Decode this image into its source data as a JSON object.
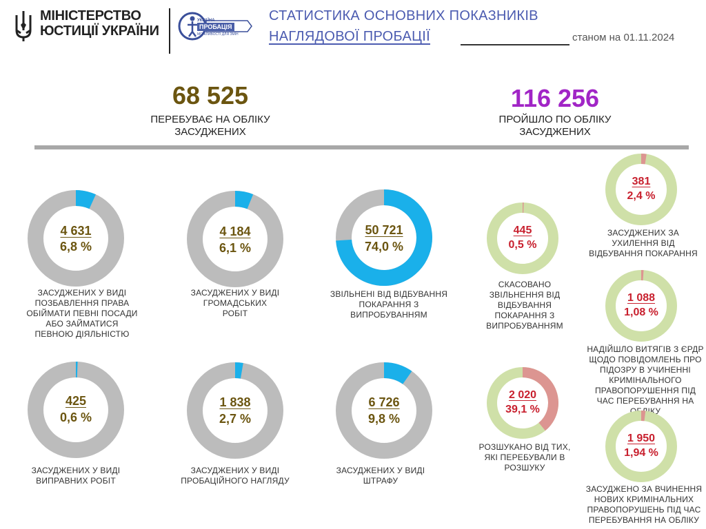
{
  "header": {
    "ministry_line1": "МІНІСТЕРСТВО",
    "ministry_line2": "ЮСТИЦІЇ УКРАЇНИ",
    "logo_line1": "УКРАЇНА",
    "logo_line2": "ПРОБАЦІЯ",
    "logo_line3": "МОЖЛИВОСТІ ДЛЯ ЗМІН",
    "title_line1": "СТАТИСТИКА ОСНОВНИХ ПОКАЗНИКІВ",
    "title_line2": "НАГЛЯДОВОЇ ПРОБАЦІЇ",
    "date_text": "станом на 01.11.2024"
  },
  "totals": {
    "left": {
      "value": "68 525",
      "caption": "ПЕРЕБУВАЄ НА ОБЛІКУ ЗАСУДЖЕНИХ"
    },
    "right": {
      "value": "116 256",
      "caption": "ПРОЙШЛО ПО ОБЛІКУ ЗАСУДЖЕНИХ"
    }
  },
  "colors": {
    "gray_track": "#bcbcbc",
    "blue": "#1ab0ea",
    "green_track": "#cfe0a8",
    "pink": "#dc9591",
    "brown_text": "#6b5510",
    "red_text": "#c8202e",
    "purple_total": "#a125c6",
    "title_blue": "#4b5bb0"
  },
  "donuts_left": [
    {
      "value": "4 631",
      "percent": "6,8 %",
      "fraction": 0.068,
      "caption": "ЗАСУДЖЕНИХ У ВИДІ ПОЗБАВЛЕННЯ ПРАВА ОБІЙМАТИ ПЕВНІ ПОСАДИ АБО ЗАЙМАТИСЯ ПЕВНОЮ ДІЯЛЬНІСТЮ"
    },
    {
      "value": "4 184",
      "percent": "6,1 %",
      "fraction": 0.061,
      "caption": "ЗАСУДЖЕНИХ У ВИДІ ГРОМАДСЬКИХ РОБІТ"
    },
    {
      "value": "50 721",
      "percent": "74,0 %",
      "fraction": 0.74,
      "caption": "ЗВІЛЬНЕНІ ВІД ВІДБУВАННЯ ПОКАРАННЯ З ВИПРОБУВАННЯМ"
    },
    {
      "value": "425",
      "percent": "0,6 %",
      "fraction": 0.006,
      "caption": "ЗАСУДЖЕНИХ У ВИДІ ВИПРАВНИХ РОБІТ"
    },
    {
      "value": "1 838",
      "percent": "2,7 %",
      "fraction": 0.027,
      "caption": "ЗАСУДЖЕНИХ У ВИДІ ПРОБАЦІЙНОГО НАГЛЯДУ"
    },
    {
      "value": "6 726",
      "percent": "9,8 %",
      "fraction": 0.098,
      "caption": "ЗАСУДЖЕНИХ У ВИДІ ШТРАФУ"
    }
  ],
  "donuts_right": [
    {
      "value": "445",
      "percent": "0,5 %",
      "fraction": 0.005,
      "caption": "СКАСОВАНО ЗВІЛЬНЕННЯ ВІД ВІДБУВАННЯ ПОКАРАННЯ З ВИПРОБУВАННЯМ"
    },
    {
      "value": "2 020",
      "percent": "39,1 %",
      "fraction": 0.391,
      "caption": "РОЗШУКАНО ВІД ТИХ, ЯКІ ПЕРЕБУВАЛИ В РОЗШУКУ"
    },
    {
      "value": "381",
      "percent": "2,4 %",
      "fraction": 0.024,
      "caption": "ЗАСУДЖЕНИХ ЗА УХИЛЕННЯ ВІД ВІДБУВАННЯ ПОКАРАННЯ"
    },
    {
      "value": "1 088",
      "percent": "1,08 %",
      "fraction": 0.0108,
      "caption": "НАДІЙШЛО ВИТЯГІВ З ЄРДР ЩОДО ПОВІДОМЛЕНЬ ПРО ПІДОЗРУ В УЧИНЕННІ КРИМІНАЛЬНОГО ПРАВОПОРУШЕННЯ ПІД ЧАС ПЕРЕБУВАННЯ НА ОБЛІКУ"
    },
    {
      "value": "1 950",
      "percent": "1,94 %",
      "fraction": 0.0194,
      "caption": "ЗАСУДЖЕНО ЗА ВЧИНЕННЯ НОВИХ КРИМІНАЛЬНИХ ПРАВОПОРУШЕНЬ ПІД ЧАС ПЕРЕБУВАННЯ НА ОБЛІКУ"
    }
  ]
}
